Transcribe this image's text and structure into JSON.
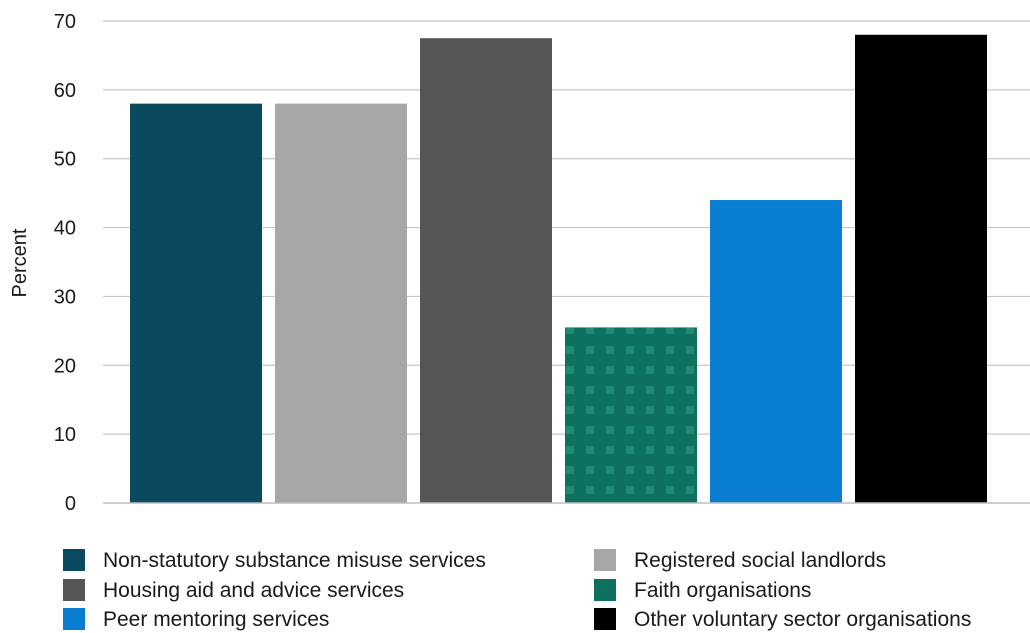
{
  "chart_data": {
    "type": "bar",
    "ylabel": "Percent",
    "ylim": [
      0,
      70
    ],
    "yticks": [
      0,
      10,
      20,
      30,
      40,
      50,
      60,
      70
    ],
    "grid": true,
    "legend_position": "bottom",
    "series": [
      {
        "name": "Non-statutory substance misuse services",
        "value": 58,
        "color": "#0b4a5e",
        "pattern": "solid"
      },
      {
        "name": "Registered social landlords",
        "value": 58,
        "color": "#a5a7a9",
        "pattern": "solid"
      },
      {
        "name": "Housing aid and advice services",
        "value": 67.5,
        "color": "#555558",
        "pattern": "solid"
      },
      {
        "name": "Faith organisations",
        "value": 25.5,
        "color": "#0e7160",
        "pattern": "dotted"
      },
      {
        "name": "Peer mentoring services",
        "value": 44,
        "color": "#0a7fd1",
        "pattern": "solid"
      },
      {
        "name": "Other voluntary sector organisations",
        "value": 68,
        "color": "#000000",
        "pattern": "solid"
      }
    ]
  }
}
